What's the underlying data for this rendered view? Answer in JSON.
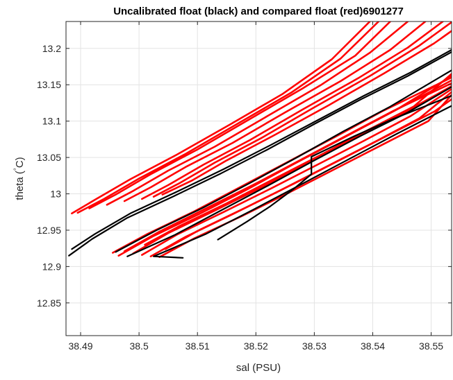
{
  "chart_data": {
    "type": "line",
    "title": "Uncalibrated float (black) and compared float (red)6901277",
    "xlabel": "sal (PSU)",
    "ylabel_parts": [
      "theta (",
      "°",
      "C)"
    ],
    "xlim": [
      38.4875,
      38.5535
    ],
    "ylim": [
      12.805,
      13.237
    ],
    "xticks": [
      38.49,
      38.5,
      38.51,
      38.52,
      38.53,
      38.54,
      38.55
    ],
    "xtick_labels": [
      "38.49",
      "38.5",
      "38.51",
      "38.52",
      "38.53",
      "38.54",
      "38.55"
    ],
    "yticks": [
      12.85,
      12.9,
      12.95,
      13.0,
      13.05,
      13.1,
      13.15,
      13.2
    ],
    "ytick_labels": [
      "12.85",
      "12.9",
      "12.95",
      "13",
      "13.05",
      "13.1",
      "13.15",
      "13.2"
    ],
    "grid": true,
    "colors": {
      "uncalibrated": "#000000",
      "compared": "#ff0000",
      "grid": "#e3e3e3",
      "axis": "#262626"
    },
    "series": [
      {
        "group": "compared",
        "x": [
          38.4885,
          38.4925,
          38.4985,
          38.5065,
          38.5155,
          38.5245,
          38.533,
          38.5395
        ],
        "y": [
          12.973,
          12.992,
          13.02,
          13.054,
          13.095,
          13.137,
          13.185,
          13.237
        ]
      },
      {
        "group": "compared",
        "x": [
          38.4895,
          38.494,
          38.5,
          38.508,
          38.517,
          38.526,
          38.5345,
          38.541
        ],
        "y": [
          12.974,
          12.993,
          13.021,
          13.055,
          13.097,
          13.139,
          13.186,
          13.237
        ]
      },
      {
        "group": "compared",
        "x": [
          38.4915,
          38.496,
          38.502,
          38.51,
          38.519,
          38.528,
          38.537,
          38.543
        ],
        "y": [
          12.98,
          12.999,
          13.027,
          13.061,
          13.103,
          13.145,
          13.19,
          13.237
        ]
      },
      {
        "group": "compared",
        "x": [
          38.4945,
          38.499,
          38.505,
          38.513,
          38.522,
          38.531,
          38.5395,
          38.546
        ],
        "y": [
          12.985,
          13.004,
          13.032,
          13.065,
          13.107,
          13.149,
          13.194,
          13.237
        ]
      },
      {
        "group": "compared",
        "x": [
          38.4975,
          38.502,
          38.508,
          38.516,
          38.525,
          38.5345,
          38.543,
          38.549
        ],
        "y": [
          12.99,
          13.009,
          13.037,
          13.07,
          13.112,
          13.155,
          13.198,
          13.237
        ]
      },
      {
        "group": "compared",
        "x": [
          38.5005,
          38.505,
          38.511,
          38.519,
          38.528,
          38.5375,
          38.546,
          38.552
        ],
        "y": [
          12.993,
          13.012,
          13.04,
          13.074,
          13.116,
          13.159,
          13.201,
          13.237
        ]
      },
      {
        "group": "compared",
        "x": [
          38.5025,
          38.507,
          38.513,
          38.521,
          38.53,
          38.5395,
          38.548,
          38.5535
        ],
        "y": [
          12.996,
          13.015,
          13.043,
          13.077,
          13.119,
          13.162,
          13.204,
          13.236
        ]
      },
      {
        "group": "compared",
        "x": [
          38.504,
          38.509,
          38.515,
          38.523,
          38.5325,
          38.542,
          38.5505,
          38.5535
        ],
        "y": [
          12.999,
          13.018,
          13.046,
          13.08,
          13.122,
          13.166,
          13.207,
          13.224
        ]
      },
      {
        "group": "uncalibrated",
        "x": [
          38.488,
          38.492,
          38.498,
          38.506,
          38.514,
          38.522,
          38.53,
          38.538,
          38.546,
          38.5535
        ],
        "y": [
          12.915,
          12.938,
          12.967,
          12.997,
          13.028,
          13.061,
          13.096,
          13.13,
          13.162,
          13.195
        ]
      },
      {
        "group": "uncalibrated",
        "x": [
          38.4885,
          38.4925,
          38.4985,
          38.5065,
          38.5145,
          38.5225,
          38.5305,
          38.5385,
          38.5465,
          38.5535
        ],
        "y": [
          12.924,
          12.945,
          12.973,
          13.003,
          13.034,
          13.067,
          13.101,
          13.135,
          13.167,
          13.198
        ]
      },
      {
        "group": "uncalibrated",
        "x": [
          38.496,
          38.503,
          38.511,
          38.519,
          38.527,
          38.535,
          38.543,
          38.5535
        ],
        "y": [
          12.92,
          12.95,
          12.981,
          13.015,
          13.05,
          13.086,
          13.12,
          13.17
        ]
      },
      {
        "group": "uncalibrated",
        "x": [
          38.498,
          38.506,
          38.514,
          38.522,
          38.53,
          38.538,
          38.546,
          38.5535
        ],
        "y": [
          12.914,
          12.943,
          12.977,
          13.011,
          13.046,
          13.08,
          13.112,
          13.147
        ]
      },
      {
        "group": "uncalibrated",
        "x": [
          38.5075,
          38.5025,
          38.5115,
          38.5195,
          38.528,
          38.536,
          38.544,
          38.5535
        ],
        "y": [
          12.912,
          12.914,
          12.945,
          12.978,
          13.014,
          13.048,
          13.082,
          13.121
        ]
      },
      {
        "group": "uncalibrated",
        "x": [
          38.5135,
          38.5185,
          38.5225,
          38.5265,
          38.5295,
          38.5295,
          38.5365,
          38.5435,
          38.5535
        ],
        "y": [
          12.937,
          12.962,
          12.983,
          13.007,
          13.027,
          13.051,
          13.078,
          13.103,
          13.135
        ]
      },
      {
        "group": "compared",
        "x": [
          38.4955,
          38.5015,
          38.5095,
          38.5175,
          38.5255,
          38.5335,
          38.5415,
          38.5535
        ],
        "y": [
          12.919,
          12.945,
          12.976,
          13.01,
          13.044,
          13.078,
          13.113,
          13.16
        ]
      },
      {
        "group": "compared",
        "x": [
          38.4965,
          38.5025,
          38.5105,
          38.5185,
          38.5265,
          38.5345,
          38.5425,
          38.5535
        ],
        "y": [
          12.915,
          12.942,
          12.973,
          13.006,
          13.041,
          13.075,
          13.109,
          13.156
        ]
      },
      {
        "group": "compared",
        "x": [
          38.4975,
          38.5035,
          38.5115,
          38.5195,
          38.5275,
          38.5355,
          38.5435,
          38.5535
        ],
        "y": [
          12.921,
          12.948,
          12.98,
          13.012,
          13.046,
          13.08,
          13.114,
          13.152
        ]
      },
      {
        "group": "compared",
        "x": [
          38.499,
          38.505,
          38.513,
          38.521,
          38.529,
          38.537,
          38.545,
          38.5535
        ],
        "y": [
          12.918,
          12.946,
          12.977,
          13.009,
          13.043,
          13.076,
          13.11,
          13.148
        ]
      },
      {
        "group": "compared",
        "x": [
          38.5005,
          38.5065,
          38.5145,
          38.5225,
          38.5305,
          38.5385,
          38.5465,
          38.5535
        ],
        "y": [
          12.916,
          12.944,
          12.975,
          13.007,
          13.04,
          13.073,
          13.107,
          13.144
        ]
      },
      {
        "group": "compared",
        "x": [
          38.502,
          38.508,
          38.516,
          38.524,
          38.532,
          38.54,
          38.548,
          38.5535
        ],
        "y": [
          12.914,
          12.941,
          12.972,
          13.004,
          13.037,
          13.07,
          13.104,
          13.14
        ]
      },
      {
        "group": "compared",
        "x": [
          38.5035,
          38.5095,
          38.5175,
          38.5255,
          38.5335,
          38.5415,
          38.5495,
          38.5535
        ],
        "y": [
          12.913,
          12.939,
          12.969,
          13.001,
          13.034,
          13.067,
          13.1,
          13.136
        ]
      },
      {
        "group": "compared",
        "x": [
          38.4985,
          38.5045,
          38.5125,
          38.5205,
          38.5285,
          38.5365,
          38.5445,
          38.5535
        ],
        "y": [
          12.925,
          12.952,
          12.984,
          13.016,
          13.05,
          13.084,
          13.118,
          13.162
        ]
      },
      {
        "group": "compared",
        "x": [
          38.501,
          38.507,
          38.515,
          38.523,
          38.531,
          38.539,
          38.547,
          38.5535
        ],
        "y": [
          12.93,
          12.956,
          12.987,
          13.02,
          13.053,
          13.087,
          13.12,
          13.165
        ]
      },
      {
        "group": "compared",
        "x": [
          38.5045,
          38.5105,
          38.5185,
          38.5265,
          38.5345,
          38.5425,
          38.5505,
          38.5535
        ],
        "y": [
          12.924,
          12.951,
          12.982,
          13.014,
          13.047,
          13.08,
          13.113,
          13.13
        ]
      }
    ]
  }
}
